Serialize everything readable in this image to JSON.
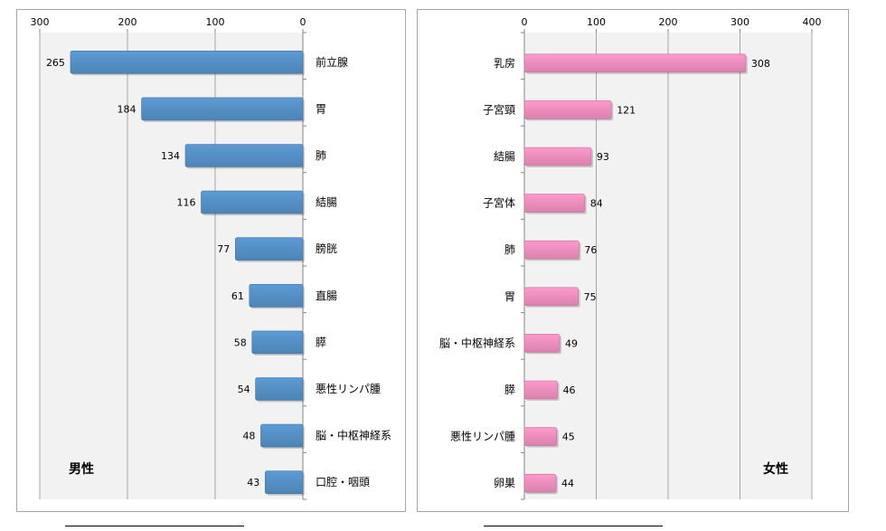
{
  "chart_data": [
    {
      "type": "bar",
      "orientation": "horizontal",
      "direction": "right-to-left",
      "label": "男性",
      "color": "#5b9bd5",
      "axis_ticks": [
        "300",
        "200",
        "100",
        "0"
      ],
      "xlim": [
        0,
        300
      ],
      "grid": true,
      "categories": [
        "前立腺",
        "胃",
        "肺",
        "結腸",
        "膀胱",
        "直腸",
        "膵",
        "悪性リンパ腫",
        "脳・中枢神経系",
        "口腔・咽頭"
      ],
      "values": [
        265,
        184,
        134,
        116,
        77,
        61,
        58,
        54,
        48,
        43
      ]
    },
    {
      "type": "bar",
      "orientation": "horizontal",
      "direction": "left-to-right",
      "label": "女性",
      "color": "#ff99cc",
      "axis_ticks": [
        "0",
        "100",
        "200",
        "300",
        "400"
      ],
      "xlim": [
        0,
        400
      ],
      "grid": true,
      "categories": [
        "乳房",
        "子宮頸",
        "結腸",
        "子宮体",
        "肺",
        "胃",
        "脳・中枢神経系",
        "膵",
        "悪性リンパ腫",
        "卵巣"
      ],
      "values": [
        308,
        121,
        93,
        84,
        76,
        75,
        49,
        46,
        45,
        44
      ]
    }
  ]
}
